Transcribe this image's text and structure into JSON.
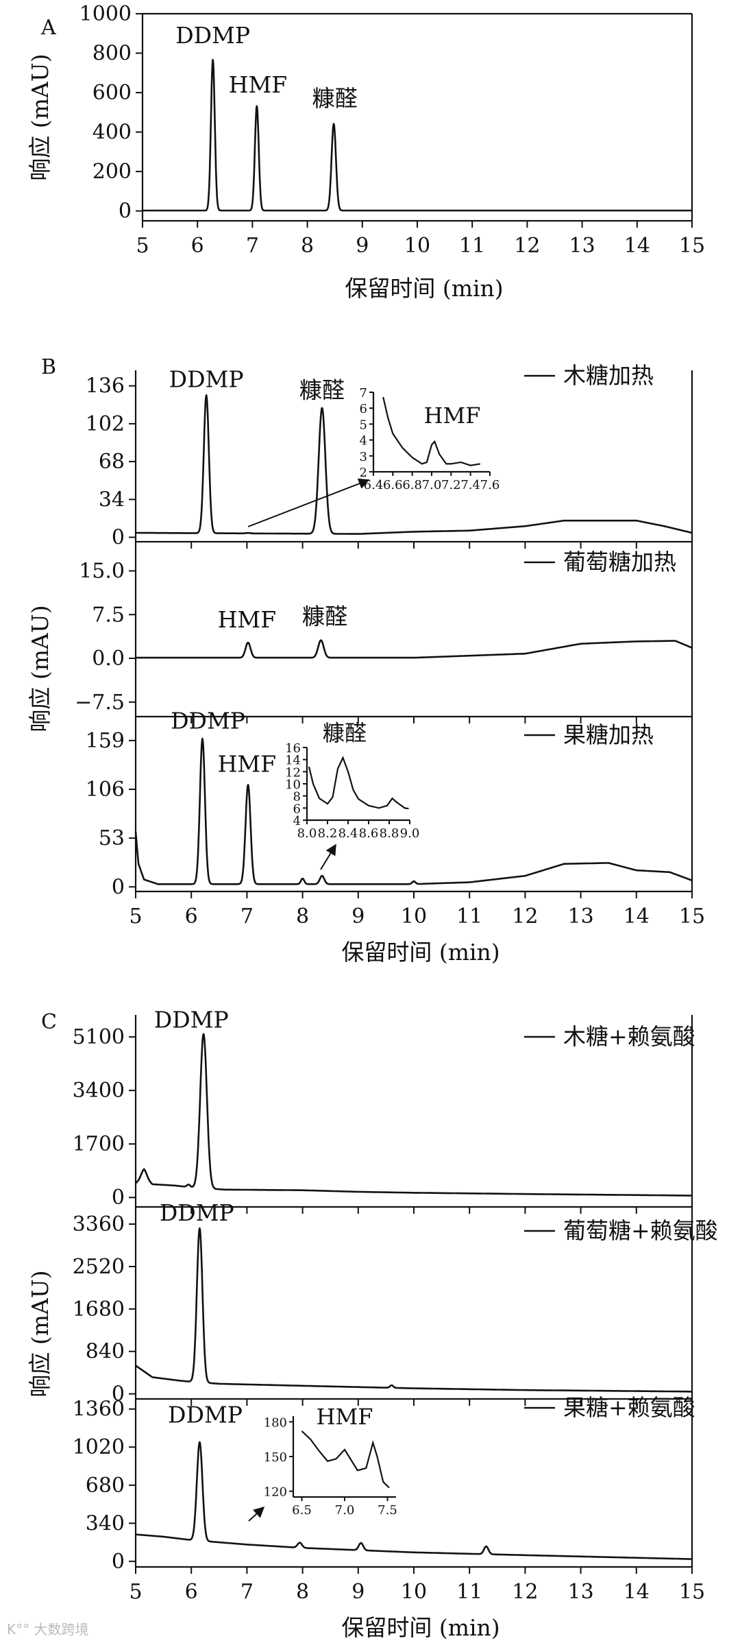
{
  "watermark": "K°° 大数跨境",
  "chart_data": [
    {
      "id": "A",
      "panel_label": "A",
      "type": "line",
      "xlabel": "保留时间 (min)",
      "ylabel": "响应 (mAU)",
      "xlim": [
        5,
        15
      ],
      "ylim": [
        -50,
        1000
      ],
      "xticks": [
        5,
        6,
        7,
        8,
        9,
        10,
        11,
        12,
        13,
        14,
        15
      ],
      "yticks": [
        0,
        200,
        400,
        600,
        800,
        1000
      ],
      "series": [
        {
          "baseline": 2,
          "peaks": [
            {
              "x": 6.28,
              "h": 765,
              "w": 0.035
            },
            {
              "x": 7.08,
              "h": 530,
              "w": 0.035
            },
            {
              "x": 8.48,
              "h": 440,
              "w": 0.04
            }
          ]
        }
      ],
      "annotations": [
        {
          "text": "DDMP",
          "x": 6.28,
          "y": 850
        },
        {
          "text": "HMF",
          "x": 7.1,
          "y": 600
        },
        {
          "text": "糠醛",
          "x": 8.5,
          "y": 530
        }
      ]
    },
    {
      "id": "B1",
      "panel_label": "B",
      "type": "line",
      "xlim": [
        5,
        15
      ],
      "ylim": [
        -4,
        150
      ],
      "yticks": [
        0,
        34,
        68,
        102,
        136
      ],
      "legend": "木糖加热",
      "series": [
        {
          "baseline": 4,
          "drift": [
            [
              5,
              4
            ],
            [
              9,
              3
            ],
            [
              10,
              5
            ],
            [
              11,
              6
            ],
            [
              12,
              10
            ],
            [
              12.7,
              15
            ],
            [
              14,
              15
            ],
            [
              14.5,
              10
            ],
            [
              15,
              4
            ]
          ],
          "peaks": [
            {
              "x": 6.27,
              "h": 124,
              "w": 0.045
            },
            {
              "x": 7.02,
              "h": 0.4,
              "w": 0.04
            },
            {
              "x": 8.35,
              "h": 113,
              "w": 0.06
            }
          ]
        }
      ],
      "annotations": [
        {
          "text": "DDMP",
          "x": 6.27,
          "y": 135
        },
        {
          "text": "糠醛",
          "x": 8.35,
          "y": 125
        }
      ],
      "inset": {
        "xlim": [
          6.4,
          7.6
        ],
        "ylim": [
          2,
          7
        ],
        "xticks": [
          6.4,
          6.6,
          6.8,
          7.0,
          7.2,
          7.4,
          7.6
        ],
        "yticks": [
          2,
          3,
          4,
          5,
          6,
          7
        ],
        "points": [
          [
            6.5,
            6.7
          ],
          [
            6.55,
            5.4
          ],
          [
            6.6,
            4.4
          ],
          [
            6.7,
            3.5
          ],
          [
            6.8,
            2.9
          ],
          [
            6.9,
            2.5
          ],
          [
            6.95,
            2.6
          ],
          [
            7.0,
            3.7
          ],
          [
            7.03,
            3.9
          ],
          [
            7.08,
            3.1
          ],
          [
            7.15,
            2.5
          ],
          [
            7.2,
            2.5
          ],
          [
            7.3,
            2.6
          ],
          [
            7.4,
            2.4
          ],
          [
            7.5,
            2.5
          ]
        ],
        "label": "HMF"
      }
    },
    {
      "id": "B2",
      "type": "line",
      "xlim": [
        5,
        15
      ],
      "ylim": [
        -10,
        20
      ],
      "yticks": [
        -7.5,
        0.0,
        7.5,
        15.0
      ],
      "ytick_labels": [
        "−7.5",
        "0.0",
        "7.5",
        "15.0"
      ],
      "ylabel": "响应 (mAU)",
      "legend": "葡萄糖加热",
      "series": [
        {
          "baseline": 0.1,
          "drift": [
            [
              5,
              0.1
            ],
            [
              10,
              0.1
            ],
            [
              12,
              0.8
            ],
            [
              13,
              2.5
            ],
            [
              14,
              2.9
            ],
            [
              14.7,
              3.0
            ],
            [
              15,
              1.8
            ]
          ],
          "peaks": [
            {
              "x": 7.02,
              "h": 2.6,
              "w": 0.045
            },
            {
              "x": 8.33,
              "h": 3.0,
              "w": 0.05
            }
          ]
        }
      ],
      "annotations": [
        {
          "text": "HMF",
          "x": 7.0,
          "y": 5.3
        },
        {
          "text": "糠醛",
          "x": 8.4,
          "y": 5.8
        }
      ]
    },
    {
      "id": "B3",
      "type": "line",
      "xlim": [
        5,
        15
      ],
      "ylim": [
        -5,
        185
      ],
      "xticks": [
        5,
        6,
        7,
        8,
        9,
        10,
        11,
        12,
        13,
        14,
        15
      ],
      "yticks": [
        0,
        53,
        106,
        159
      ],
      "xlabel": "保留时间 (min)",
      "legend": "果糖加热",
      "series": [
        {
          "baseline": 3,
          "drift": [
            [
              5,
              60
            ],
            [
              5.05,
              25
            ],
            [
              5.15,
              8
            ],
            [
              5.4,
              3
            ],
            [
              10,
              3
            ],
            [
              11,
              5
            ],
            [
              12,
              12
            ],
            [
              12.7,
              25
            ],
            [
              13.5,
              26
            ],
            [
              14,
              18
            ],
            [
              14.6,
              16
            ],
            [
              15,
              7
            ]
          ],
          "peaks": [
            {
              "x": 6.2,
              "h": 158,
              "w": 0.045
            },
            {
              "x": 7.02,
              "h": 108,
              "w": 0.045
            },
            {
              "x": 8.0,
              "h": 6,
              "w": 0.03
            },
            {
              "x": 8.35,
              "h": 9,
              "w": 0.04
            },
            {
              "x": 10.0,
              "h": 3,
              "w": 0.03
            }
          ]
        }
      ],
      "annotations": [
        {
          "text": "DDMP",
          "x": 6.3,
          "y": 172
        },
        {
          "text": "HMF",
          "x": 7.0,
          "y": 125
        }
      ],
      "inset": {
        "xlim": [
          8.0,
          9.0
        ],
        "ylim": [
          4,
          16
        ],
        "xticks": [
          8.0,
          8.2,
          8.4,
          8.6,
          8.8,
          9.0
        ],
        "yticks": [
          4,
          6,
          8,
          10,
          12,
          14,
          16
        ],
        "points": [
          [
            8.02,
            12.8
          ],
          [
            8.06,
            10
          ],
          [
            8.12,
            7.6
          ],
          [
            8.2,
            6.7
          ],
          [
            8.25,
            7.8
          ],
          [
            8.3,
            12.5
          ],
          [
            8.35,
            14.3
          ],
          [
            8.4,
            12
          ],
          [
            8.45,
            9
          ],
          [
            8.5,
            7.5
          ],
          [
            8.6,
            6.4
          ],
          [
            8.7,
            6.0
          ],
          [
            8.78,
            6.4
          ],
          [
            8.83,
            7.6
          ],
          [
            8.87,
            7.0
          ],
          [
            8.95,
            6.0
          ],
          [
            8.99,
            5.9
          ]
        ],
        "label": "糠醛"
      }
    },
    {
      "id": "C1",
      "panel_label": "C",
      "type": "line",
      "xlim": [
        5,
        15
      ],
      "ylim": [
        -300,
        5800
      ],
      "yticks": [
        0,
        1700,
        3400,
        5100
      ],
      "legend": "木糖+赖氨酸",
      "series": [
        {
          "baseline": 300,
          "drift": [
            [
              5,
              450
            ],
            [
              5.15,
              650
            ],
            [
              5.3,
              420
            ],
            [
              5.7,
              380
            ],
            [
              6,
              320
            ],
            [
              6.6,
              250
            ],
            [
              8,
              230
            ],
            [
              9,
              180
            ],
            [
              10,
              150
            ],
            [
              12,
              110
            ],
            [
              15,
              60
            ]
          ],
          "peaks": [
            {
              "x": 6.22,
              "h": 4900,
              "w": 0.06
            },
            {
              "x": 5.15,
              "h": 250,
              "w": 0.05
            },
            {
              "x": 5.95,
              "h": 80,
              "w": 0.03
            }
          ]
        }
      ],
      "annotations": [
        {
          "text": "DDMP",
          "x": 6.0,
          "y": 5400
        }
      ]
    },
    {
      "id": "C2",
      "type": "line",
      "xlim": [
        5,
        15
      ],
      "ylim": [
        -100,
        3700
      ],
      "yticks": [
        0,
        840,
        1680,
        2520,
        3360
      ],
      "ylabel": "响应 (mAU)",
      "legend": "葡萄糖+赖氨酸",
      "series": [
        {
          "baseline": 200,
          "drift": [
            [
              5,
              560
            ],
            [
              5.3,
              330
            ],
            [
              5.8,
              260
            ],
            [
              6.0,
              240
            ],
            [
              6.5,
              200
            ],
            [
              8,
              160
            ],
            [
              10,
              110
            ],
            [
              12,
              75
            ],
            [
              15,
              45
            ]
          ],
          "peaks": [
            {
              "x": 6.15,
              "h": 3050,
              "w": 0.05
            },
            {
              "x": 9.6,
              "h": 50,
              "w": 0.03
            }
          ]
        }
      ],
      "annotations": [
        {
          "text": "DDMP",
          "x": 6.1,
          "y": 3430
        }
      ]
    },
    {
      "id": "C3",
      "type": "line",
      "xlim": [
        5,
        15
      ],
      "ylim": [
        -50,
        1450
      ],
      "xticks": [
        5,
        6,
        7,
        8,
        9,
        10,
        11,
        12,
        13,
        14,
        15
      ],
      "yticks": [
        0,
        340,
        680,
        1020,
        1360
      ],
      "xlabel": "保留时间 (min)",
      "legend": "果糖+赖氨酸",
      "series": [
        {
          "baseline": 150,
          "drift": [
            [
              5,
              240
            ],
            [
              5.5,
              220
            ],
            [
              6.0,
              190
            ],
            [
              7,
              150
            ],
            [
              8,
              120
            ],
            [
              9,
              100
            ],
            [
              10,
              80
            ],
            [
              12,
              55
            ],
            [
              15,
              20
            ]
          ],
          "peaks": [
            {
              "x": 6.15,
              "h": 880,
              "w": 0.05
            },
            {
              "x": 7.95,
              "h": 45,
              "w": 0.04
            },
            {
              "x": 9.05,
              "h": 65,
              "w": 0.04
            },
            {
              "x": 11.3,
              "h": 70,
              "w": 0.04
            }
          ]
        }
      ],
      "annotations": [
        {
          "text": "DDMP",
          "x": 6.25,
          "y": 1240
        }
      ],
      "inset": {
        "xlim": [
          6.4,
          7.6
        ],
        "ylim": [
          115,
          185
        ],
        "xticks": [
          6.5,
          7.0,
          7.5
        ],
        "yticks": [
          120,
          150,
          180
        ],
        "points": [
          [
            6.5,
            172
          ],
          [
            6.6,
            165
          ],
          [
            6.7,
            155
          ],
          [
            6.8,
            146
          ],
          [
            6.9,
            148
          ],
          [
            7.0,
            156
          ],
          [
            7.05,
            150
          ],
          [
            7.15,
            138
          ],
          [
            7.25,
            140
          ],
          [
            7.33,
            162
          ],
          [
            7.38,
            150
          ],
          [
            7.45,
            128
          ],
          [
            7.52,
            123
          ]
        ],
        "label": "HMF"
      }
    }
  ]
}
